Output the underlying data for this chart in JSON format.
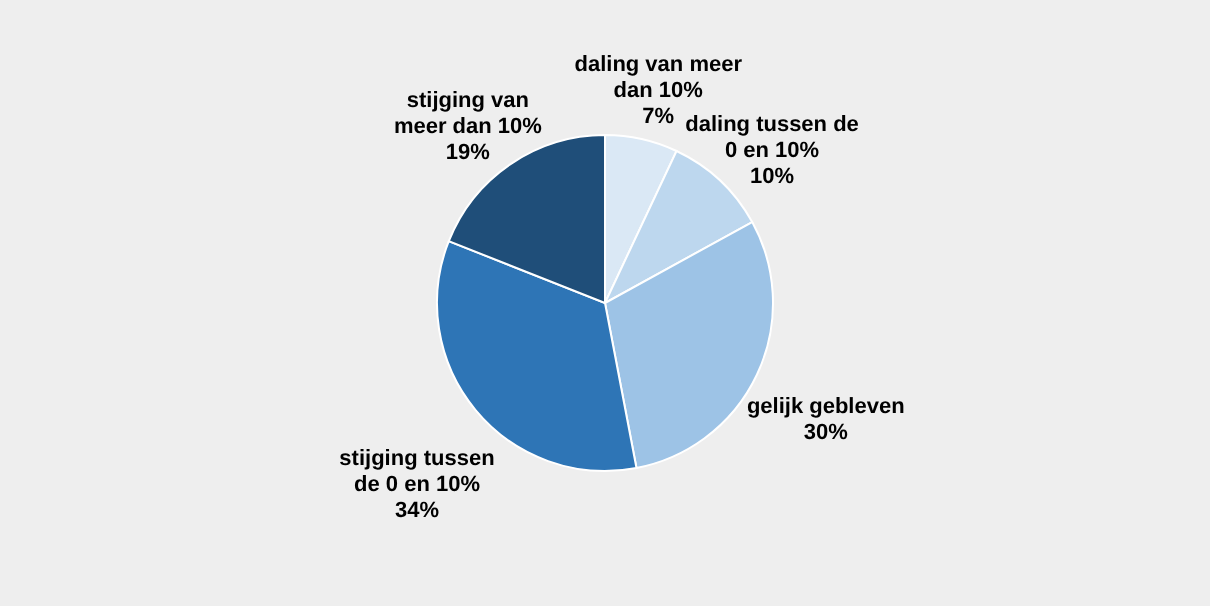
{
  "chart_data": {
    "type": "pie",
    "categories": [
      "daling van meer dan 10%",
      "daling tussen de 0 en 10%",
      "gelijk gebleven",
      "stijging tussen de 0 en 10%",
      "stijging van meer dan 10%"
    ],
    "values": [
      7,
      10,
      30,
      34,
      19
    ],
    "value_labels": [
      "7%",
      "10%",
      "30%",
      "34%",
      "19%"
    ],
    "colors": [
      "#dae8f5",
      "#bdd7ee",
      "#9dc3e6",
      "#2e75b6",
      "#1f4e79"
    ]
  }
}
